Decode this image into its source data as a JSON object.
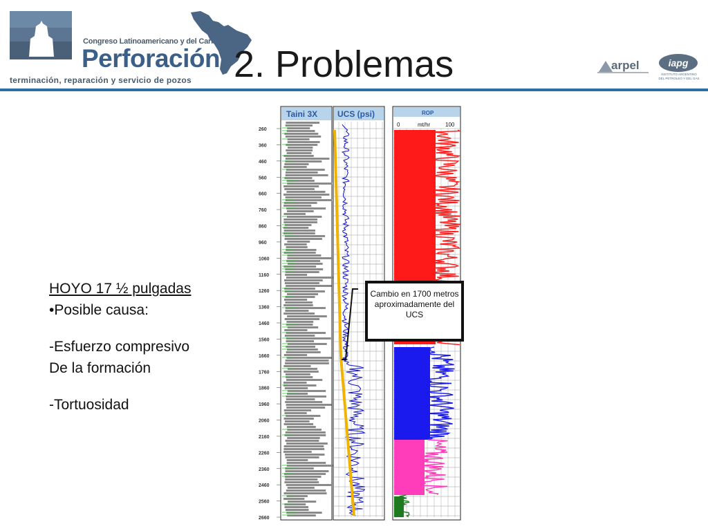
{
  "header": {
    "logo_line1": "Congreso Latinoamericano y del Caribe de",
    "logo_line2": "Perforación",
    "logo_line3": "terminación, reparación y servicio de pozos",
    "title": "2. Problemas",
    "arpel_logo_text": "arpel",
    "iapg_logo_text": "iapg",
    "iapg_logo_sub": "INSTITUTO ARGENTINO\nDEL PETROLEO Y DEL GAS",
    "rule_color": "#2f6ea5"
  },
  "body_text": {
    "heading": "HOYO 17 ½ pulgadas",
    "bullet": "•Posible causa:",
    "item1_line1": "-Esfuerzo compresivo",
    "item1_line2": "De la formación",
    "item2": "-Tortuosidad"
  },
  "log": {
    "track1_header": "Taini 3X",
    "track2_header": "UCS (psi)",
    "track3_header": "ROP",
    "rop_scale_min": "0",
    "rop_scale_unit": "mt/hr",
    "rop_scale_max": "100",
    "depths": [
      "260",
      "360",
      "460",
      "560",
      "660",
      "760",
      "860",
      "960",
      "1060",
      "1160",
      "1260",
      "1360",
      "1460",
      "1560",
      "1660",
      "1760",
      "1860",
      "1960",
      "2060",
      "2160",
      "2260",
      "2360",
      "2460",
      "2560",
      "2660"
    ],
    "callout": "Cambio en 1700 metros aproximadamente del UCS",
    "colors": {
      "header_fill": "#b8d4ea",
      "header_text": "#2a59a6",
      "ucs_curve": "#1010cc",
      "trend_line": "#f0b400",
      "rop_upper": "#ff1a1a",
      "rop_middle": "#1a1aee",
      "rop_pink": "#ff3dbb",
      "rop_bottom": "#1e7a1e",
      "lithology_gray": "#8a8a8a",
      "lithology_green": "#2ecc2e"
    }
  }
}
